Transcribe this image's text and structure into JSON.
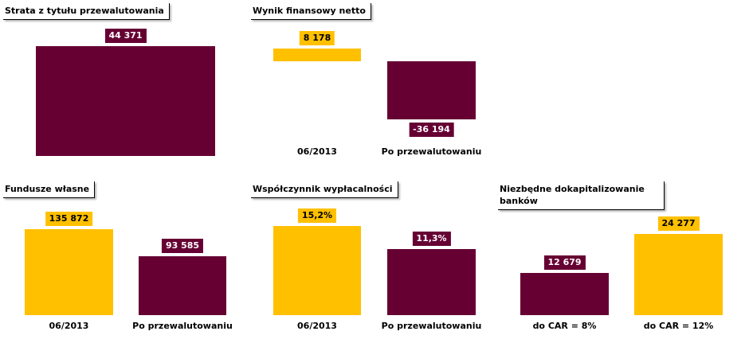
{
  "chart_data": [
    {
      "type": "bar",
      "title": "Strata  z tytułu przewalutowania",
      "categories": [
        null
      ],
      "values": [
        44371
      ],
      "value_labels": [
        "44 371"
      ],
      "colors": [
        "#660033"
      ]
    },
    {
      "type": "bar",
      "title": "Wynik finansowy netto",
      "categories": [
        "06/2013",
        "Po przewalutowaniu"
      ],
      "values": [
        8178,
        -36194
      ],
      "value_labels": [
        "8 178",
        "-36 194"
      ],
      "colors": [
        "#ffc000",
        "#660033"
      ]
    },
    {
      "type": "bar",
      "title": "Fundusze własne",
      "categories": [
        "06/2013",
        "Po przewalutowaniu"
      ],
      "values": [
        135872,
        93585
      ],
      "value_labels": [
        "135 872",
        "93 585"
      ],
      "colors": [
        "#ffc000",
        "#660033"
      ]
    },
    {
      "type": "bar",
      "title": "Współczynnik wypłacalności",
      "categories": [
        "06/2013",
        "Po przewalutowaniu"
      ],
      "values": [
        15.2,
        11.3
      ],
      "value_labels": [
        "15,2%",
        "11,3%"
      ],
      "colors": [
        "#ffc000",
        "#660033"
      ]
    },
    {
      "type": "bar",
      "title": "Niezbędne dokapitalizowanie banków",
      "categories": [
        "do CAR = 8%",
        "do CAR = 12%"
      ],
      "values": [
        12679,
        24277
      ],
      "value_labels": [
        "12 679",
        "24 277"
      ],
      "colors": [
        "#660033",
        "#ffc000"
      ]
    }
  ]
}
